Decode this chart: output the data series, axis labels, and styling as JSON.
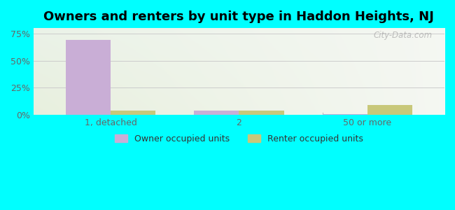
{
  "title": "Owners and renters by unit type in Haddon Heights, NJ",
  "categories": [
    "1, detached",
    "2",
    "50 or more"
  ],
  "owner_values": [
    69,
    4,
    1
  ],
  "renter_values": [
    4,
    4,
    9
  ],
  "owner_color": "#c9aed6",
  "renter_color": "#c8c87a",
  "background_color": "#00ffff",
  "plot_bg_color_top_left": "#d6e8d0",
  "plot_bg_color_top_right": "#e8eeea",
  "plot_bg_color_bottom": "#eef2e6",
  "yticks": [
    0,
    25,
    50,
    75
  ],
  "ylim": [
    0,
    80
  ],
  "bar_width": 0.35,
  "title_fontsize": 13,
  "tick_fontsize": 9,
  "legend_fontsize": 9,
  "watermark": "City-Data.com"
}
